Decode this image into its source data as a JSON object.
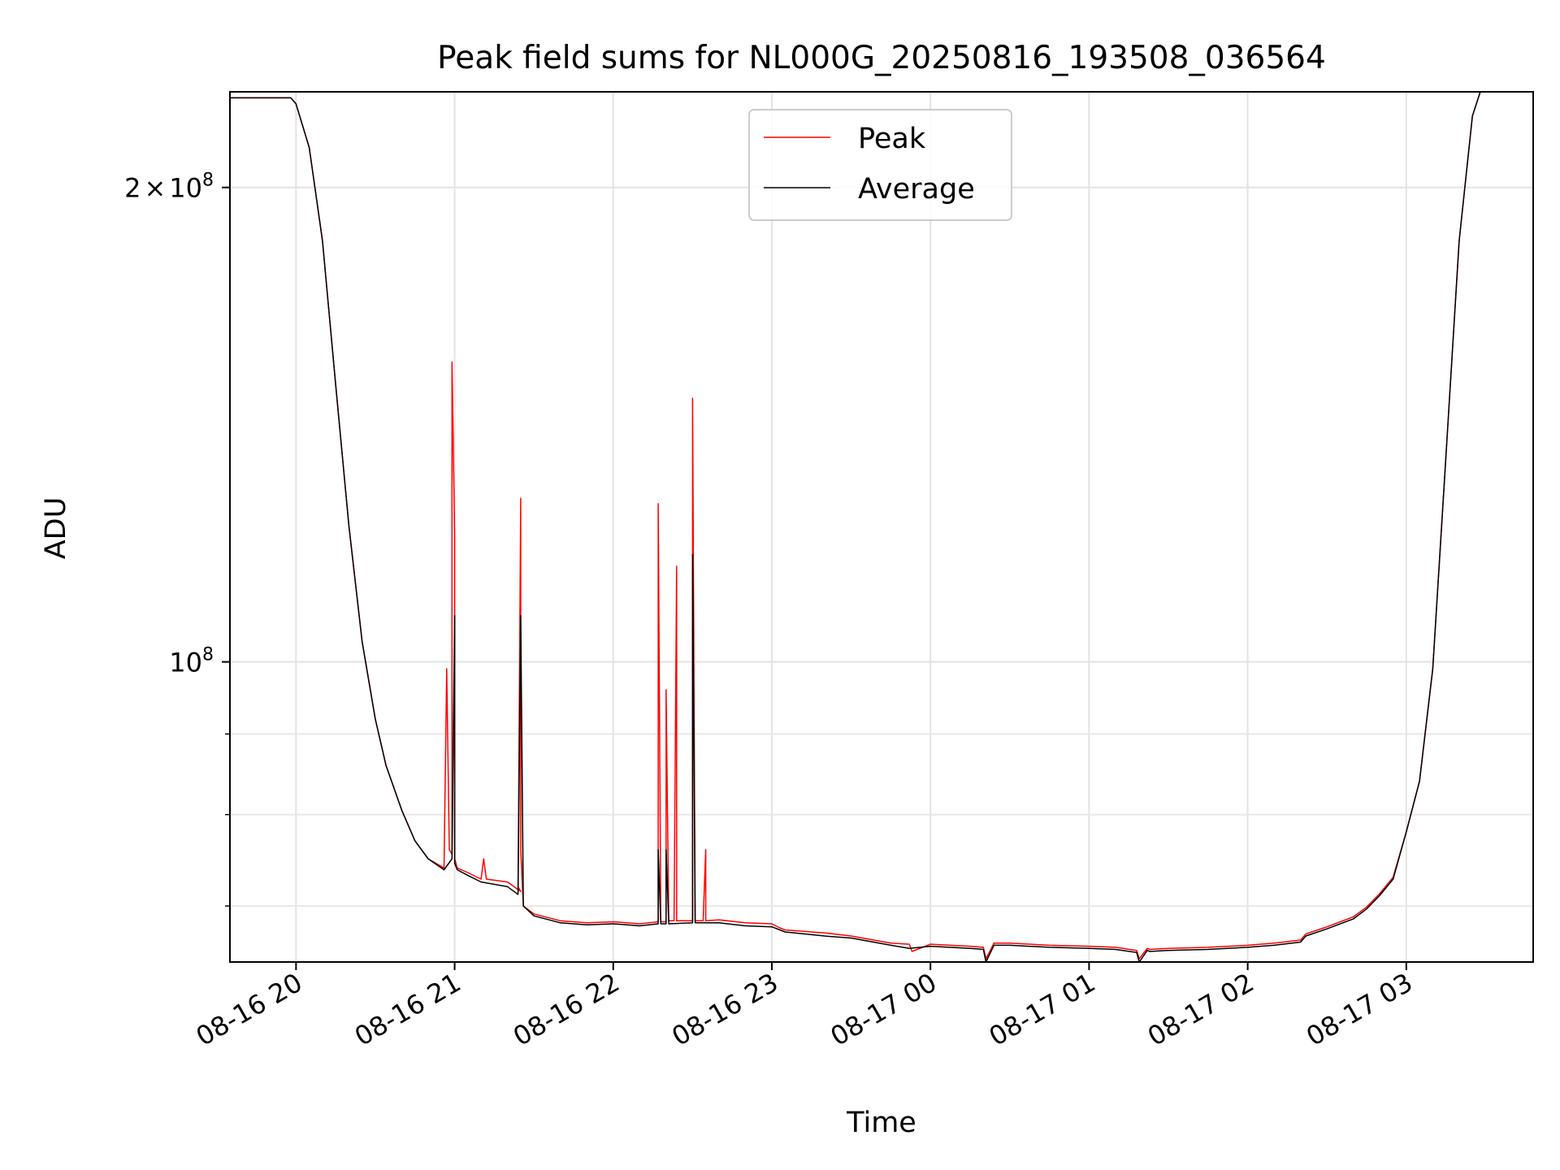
{
  "chart_data": {
    "type": "line",
    "title": "Peak field sums for NL000G_20250816_193508_036564",
    "xlabel": "Time",
    "ylabel": "ADU",
    "y_scale": "log",
    "xlim": [
      "2025-08-16 19:35",
      "2025-08-17 03:48"
    ],
    "ylim": [
      64500000,
      230000000
    ],
    "grid": true,
    "legend": "upper center",
    "x_ticks": [
      "08-16 20",
      "08-16 21",
      "08-16 22",
      "08-16 23",
      "08-17 00",
      "08-17 01",
      "08-17 02",
      "08-17 03"
    ],
    "y_ticks": [
      {
        "label_base": "2",
        "label_times": "×",
        "label_exp_base": "10",
        "label_exp": "8",
        "value": 200000000
      },
      {
        "label_base": "10",
        "label_exp": "8",
        "value": 100000000
      }
    ],
    "series": [
      {
        "name": "Peak",
        "color": "#ff0000",
        "x": [
          "2025-08-16 19:35",
          "2025-08-16 19:58",
          "2025-08-16 20:00",
          "2025-08-16 20:05",
          "2025-08-16 20:10",
          "2025-08-16 20:15",
          "2025-08-16 20:20",
          "2025-08-16 20:25",
          "2025-08-16 20:30",
          "2025-08-16 20:34",
          "2025-08-16 20:40",
          "2025-08-16 20:45",
          "2025-08-16 20:50",
          "2025-08-16 20:56",
          "2025-08-16 20:57",
          "2025-08-16 20:58",
          "2025-08-16 20:59",
          "2025-08-16 20:59",
          "2025-08-16 21:00",
          "2025-08-16 21:00",
          "2025-08-16 21:01",
          "2025-08-16 21:05",
          "2025-08-16 21:10",
          "2025-08-16 21:11",
          "2025-08-16 21:12",
          "2025-08-16 21:20",
          "2025-08-16 21:25",
          "2025-08-16 21:24",
          "2025-08-16 21:25",
          "2025-08-16 21:25",
          "2025-08-16 21:26",
          "2025-08-16 21:30",
          "2025-08-16 21:40",
          "2025-08-16 21:50",
          "2025-08-16 22:00",
          "2025-08-16 22:10",
          "2025-08-16 22:17",
          "2025-08-16 22:17",
          "2025-08-16 22:18",
          "2025-08-16 22:20",
          "2025-08-16 22:20",
          "2025-08-16 22:21",
          "2025-08-16 22:23",
          "2025-08-16 22:24",
          "2025-08-16 22:24",
          "2025-08-16 22:30",
          "2025-08-16 22:30",
          "2025-08-16 22:31",
          "2025-08-16 22:34",
          "2025-08-16 22:35",
          "2025-08-16 22:35",
          "2025-08-16 22:40",
          "2025-08-16 22:50",
          "2025-08-16 23:00",
          "2025-08-16 23:03",
          "2025-08-16 23:05",
          "2025-08-16 23:20",
          "2025-08-16 23:30",
          "2025-08-16 23:45",
          "2025-08-16 23:52",
          "2025-08-16 23:53",
          "2025-08-17 00:00",
          "2025-08-17 00:15",
          "2025-08-17 00:20",
          "2025-08-17 00:21",
          "2025-08-17 00:24",
          "2025-08-17 00:30",
          "2025-08-17 00:45",
          "2025-08-17 01:00",
          "2025-08-17 01:10",
          "2025-08-17 01:18",
          "2025-08-17 01:19",
          "2025-08-17 01:22",
          "2025-08-17 01:23",
          "2025-08-17 01:30",
          "2025-08-17 01:45",
          "2025-08-17 02:00",
          "2025-08-17 02:10",
          "2025-08-17 02:20",
          "2025-08-17 02:22",
          "2025-08-17 02:30",
          "2025-08-17 02:40",
          "2025-08-17 02:45",
          "2025-08-17 02:50",
          "2025-08-17 02:55",
          "2025-08-17 03:00",
          "2025-08-17 03:05",
          "2025-08-17 03:10",
          "2025-08-17 03:15",
          "2025-08-17 03:20",
          "2025-08-17 03:25",
          "2025-08-17 03:28",
          "2025-08-17 03:48"
        ],
        "y": [
          228000000,
          228000000,
          226000000,
          212000000,
          185000000,
          150000000,
          122000000,
          103000000,
          92000000,
          86000000,
          80500000,
          77000000,
          75000000,
          74000000,
          99000000,
          76000000,
          75500000,
          155000000,
          120000000,
          75000000,
          74000000,
          73500000,
          72800000,
          75000000,
          72800000,
          72500000,
          71500000,
          72000000,
          127000000,
          76000000,
          70000000,
          69200000,
          68500000,
          68300000,
          68400000,
          68200000,
          68400000,
          126000000,
          68400000,
          68400000,
          96000000,
          68500000,
          68500000,
          115000000,
          68500000,
          68500000,
          147000000,
          68500000,
          68500000,
          76000000,
          68500000,
          68600000,
          68300000,
          68200000,
          67800000,
          67600000,
          67300000,
          67000000,
          66300000,
          66200000,
          65500000,
          66200000,
          66000000,
          65900000,
          64800000,
          66300000,
          66300000,
          66100000,
          66000000,
          65900000,
          65600000,
          64800000,
          65800000,
          65700000,
          65800000,
          65900000,
          66100000,
          66300000,
          66600000,
          67200000,
          67900000,
          68900000,
          69900000,
          71300000,
          73000000,
          78000000,
          84000000,
          99000000,
          135000000,
          185000000,
          222000000,
          230000000,
          230000000
        ]
      },
      {
        "name": "Average",
        "color": "#000000",
        "x": [
          "2025-08-16 19:35",
          "2025-08-16 19:58",
          "2025-08-16 20:00",
          "2025-08-16 20:05",
          "2025-08-16 20:10",
          "2025-08-16 20:15",
          "2025-08-16 20:20",
          "2025-08-16 20:25",
          "2025-08-16 20:30",
          "2025-08-16 20:34",
          "2025-08-16 20:40",
          "2025-08-16 20:45",
          "2025-08-16 20:50",
          "2025-08-16 20:56",
          "2025-08-16 20:59",
          "2025-08-16 21:00",
          "2025-08-16 21:00",
          "2025-08-16 21:01",
          "2025-08-16 21:05",
          "2025-08-16 21:10",
          "2025-08-16 21:20",
          "2025-08-16 21:24",
          "2025-08-16 21:25",
          "2025-08-16 21:26",
          "2025-08-16 21:30",
          "2025-08-16 21:40",
          "2025-08-16 21:50",
          "2025-08-16 22:00",
          "2025-08-16 22:10",
          "2025-08-16 22:17",
          "2025-08-16 22:17",
          "2025-08-16 22:18",
          "2025-08-16 22:20",
          "2025-08-16 22:20",
          "2025-08-16 22:21",
          "2025-08-16 22:30",
          "2025-08-16 22:30",
          "2025-08-16 22:31",
          "2025-08-16 22:40",
          "2025-08-16 22:50",
          "2025-08-16 23:00",
          "2025-08-16 23:05",
          "2025-08-16 23:20",
          "2025-08-16 23:30",
          "2025-08-16 23:45",
          "2025-08-16 23:52",
          "2025-08-17 00:00",
          "2025-08-17 00:15",
          "2025-08-17 00:20",
          "2025-08-17 00:21",
          "2025-08-17 00:24",
          "2025-08-17 00:30",
          "2025-08-17 00:45",
          "2025-08-17 01:00",
          "2025-08-17 01:10",
          "2025-08-17 01:18",
          "2025-08-17 01:19",
          "2025-08-17 01:22",
          "2025-08-17 01:23",
          "2025-08-17 01:30",
          "2025-08-17 01:45",
          "2025-08-17 02:00",
          "2025-08-17 02:10",
          "2025-08-17 02:20",
          "2025-08-17 02:22",
          "2025-08-17 02:30",
          "2025-08-17 02:40",
          "2025-08-17 02:45",
          "2025-08-17 02:50",
          "2025-08-17 02:55",
          "2025-08-17 03:00",
          "2025-08-17 03:05",
          "2025-08-17 03:10",
          "2025-08-17 03:15",
          "2025-08-17 03:20",
          "2025-08-17 03:25",
          "2025-08-17 03:28",
          "2025-08-17 03:48"
        ],
        "y": [
          228000000,
          228000000,
          226000000,
          212000000,
          185000000,
          150000000,
          122000000,
          103000000,
          92000000,
          86000000,
          80500000,
          77000000,
          75000000,
          73800000,
          75000000,
          107000000,
          74500000,
          73800000,
          73200000,
          72500000,
          72000000,
          71200000,
          107000000,
          70000000,
          69000000,
          68300000,
          68100000,
          68200000,
          68000000,
          68200000,
          76000000,
          68200000,
          68200000,
          76000000,
          68200000,
          68300000,
          117000000,
          68300000,
          68300000,
          68000000,
          67900000,
          67400000,
          67000000,
          66800000,
          66100000,
          65800000,
          66000000,
          65800000,
          65700000,
          64500000,
          66100000,
          66100000,
          65900000,
          65800000,
          65700000,
          65400000,
          64500000,
          65600000,
          65500000,
          65600000,
          65700000,
          65900000,
          66100000,
          66400000,
          67000000,
          67700000,
          68700000,
          69700000,
          71100000,
          72800000,
          78000000,
          84000000,
          99000000,
          135000000,
          185000000,
          222000000,
          230000000,
          230000000
        ]
      }
    ]
  }
}
